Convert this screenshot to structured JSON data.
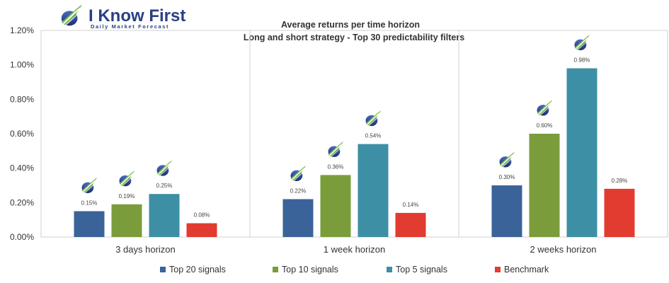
{
  "logo": {
    "brand": "I Know First",
    "tagline": "Daily Market Forecast"
  },
  "colors": {
    "Top 20 signals": "#3a6399",
    "Top 10 signals": "#7b9c3b",
    "Top 5 signals": "#3d8fa6",
    "Benchmark": "#e23b30",
    "brand": "#2a3f84",
    "brand_green": "#6cbf3a"
  },
  "chart_data": {
    "type": "bar",
    "title": "Average returns per time horizon",
    "subtitle": "Long and short strategy - Top 30  predictability filters",
    "categories": [
      "3 days horizon",
      "1 week horizon",
      "2 weeks horizon"
    ],
    "series": [
      {
        "name": "Top 20 signals",
        "values": [
          0.15,
          0.22,
          0.3
        ],
        "labels": [
          "0.15%",
          "0.22%",
          "0.30%"
        ]
      },
      {
        "name": "Top 10 signals",
        "values": [
          0.19,
          0.36,
          0.6
        ],
        "labels": [
          "0.19%",
          "0.36%",
          "0.60%"
        ]
      },
      {
        "name": "Top 5 signals",
        "values": [
          0.25,
          0.54,
          0.98
        ],
        "labels": [
          "0.25%",
          "0.54%",
          "0.98%"
        ]
      },
      {
        "name": "Benchmark",
        "values": [
          0.08,
          0.14,
          0.28
        ],
        "labels": [
          "0.08%",
          "0.14%",
          "0.28%"
        ]
      }
    ],
    "ylim": [
      0,
      1.2
    ],
    "yticks": [
      0,
      0.2,
      0.4,
      0.6,
      0.8,
      1.0,
      1.2
    ],
    "ytick_labels": [
      "0.00%",
      "0.20%",
      "0.40%",
      "0.60%",
      "0.80%",
      "1.00%",
      "1.20%"
    ],
    "xlabel": "",
    "ylabel": "",
    "grid": "vertical separators between categories",
    "legend": "bottom",
    "logo_icons_above_bars": [
      "Top 20 signals",
      "Top 10 signals",
      "Top 5 signals"
    ]
  }
}
